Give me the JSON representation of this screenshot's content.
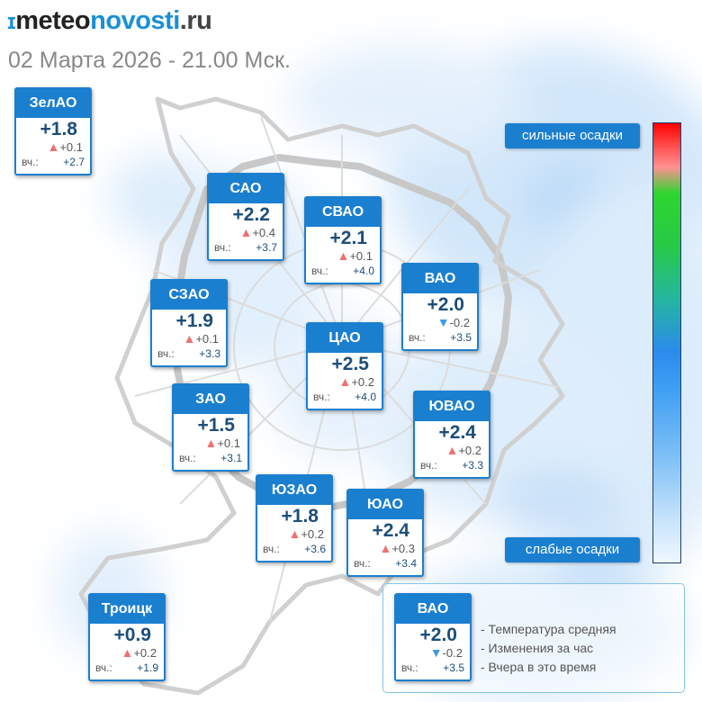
{
  "header": {
    "logo_mark": "ɪ",
    "logo_meteo": "meteo",
    "logo_novosti": "novosti",
    "logo_ru": ".ru",
    "subtitle": "02 Марта 2026 - 21.00 Мск."
  },
  "scale": {
    "top_label": "сильные осадки",
    "bottom_label": "слабые осадки"
  },
  "districts": [
    {
      "name": "ЗелАО",
      "temp": "+1.8",
      "trend": "up",
      "delta": "+0.1",
      "yest_label": "вч.:",
      "yest": "+2.7"
    },
    {
      "name": "САО",
      "temp": "+2.2",
      "trend": "up",
      "delta": "+0.4",
      "yest_label": "вч.:",
      "yest": "+3.7"
    },
    {
      "name": "СВАО",
      "temp": "+2.1",
      "trend": "up",
      "delta": "+0.1",
      "yest_label": "вч.:",
      "yest": "+4.0"
    },
    {
      "name": "ВАО",
      "temp": "+2.0",
      "trend": "down",
      "delta": "-0.2",
      "yest_label": "вч.:",
      "yest": "+3.5"
    },
    {
      "name": "СЗАО",
      "temp": "+1.9",
      "trend": "up",
      "delta": "+0.1",
      "yest_label": "вч.:",
      "yest": "+3.3"
    },
    {
      "name": "ЦАО",
      "temp": "+2.5",
      "trend": "up",
      "delta": "+0.2",
      "yest_label": "вч.:",
      "yest": "+4.0"
    },
    {
      "name": "ЗАО",
      "temp": "+1.5",
      "trend": "up",
      "delta": "+0.1",
      "yest_label": "вч.:",
      "yest": "+3.1"
    },
    {
      "name": "ЮВАО",
      "temp": "+2.4",
      "trend": "up",
      "delta": "+0.2",
      "yest_label": "вч.:",
      "yest": "+3.3"
    },
    {
      "name": "ЮЗАО",
      "temp": "+1.8",
      "trend": "up",
      "delta": "+0.2",
      "yest_label": "вч.:",
      "yest": "+3.6"
    },
    {
      "name": "ЮАО",
      "temp": "+2.4",
      "trend": "up",
      "delta": "+0.3",
      "yest_label": "вч.:",
      "yest": "+3.4"
    },
    {
      "name": "Троицк",
      "temp": "+0.9",
      "trend": "up",
      "delta": "+0.2",
      "yest_label": "вч.:",
      "yest": "+1.9"
    }
  ],
  "legend": {
    "sample": {
      "name": "ВАО",
      "temp": "+2.0",
      "trend": "down",
      "delta": "-0.2",
      "yest_label": "вч.:",
      "yest": "+3.5"
    },
    "line1": "- Температура средняя",
    "line2": "- Изменения за час",
    "line3": "- Вчера в это время"
  },
  "icons": {
    "up": "▲",
    "down": "▼"
  },
  "colors": {
    "accent": "#1b7fd0",
    "up": "#f07070",
    "down": "#3d9ae3",
    "temp": "#1c4e7a"
  }
}
